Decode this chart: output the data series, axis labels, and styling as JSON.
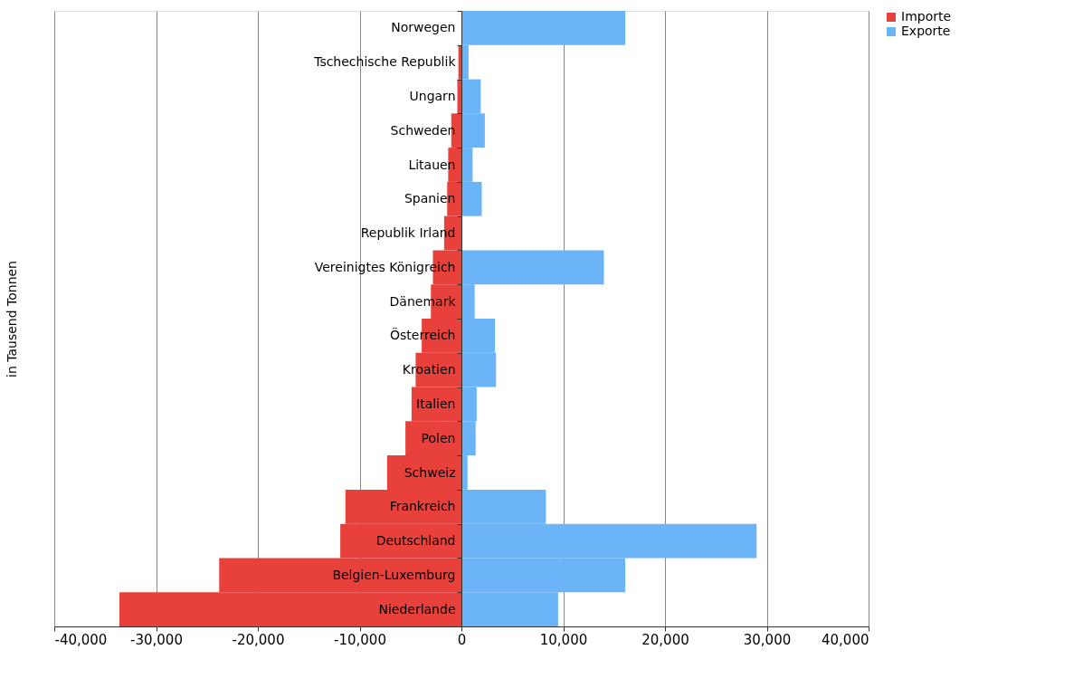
{
  "chart_data": {
    "type": "bar",
    "orientation": "horizontal",
    "ylabel": "in Tausend Tonnen",
    "categories": [
      "Norwegen",
      "Tschechische Republik",
      "Ungarn",
      "Schweden",
      "Litauen",
      "Spanien",
      "Republik Irland",
      "Vereinigtes Königreich",
      "Dänemark",
      "Österreich",
      "Kroatien",
      "Italien",
      "Polen",
      "Schweiz",
      "Frankreich",
      "Deutschland",
      "Belgien-Luxemburg",
      "Niederlande"
    ],
    "series": [
      {
        "name": "Importe",
        "color": "#e8413c",
        "values": [
          0,
          -300,
          -400,
          -1000,
          -1300,
          -1400,
          -1700,
          -2800,
          -3000,
          -3900,
          -4500,
          -4900,
          -5500,
          -7300,
          -11400,
          -11900,
          -23800,
          -33600
        ]
      },
      {
        "name": "Exporte",
        "color": "#6cb4f8",
        "values": [
          16100,
          700,
          1900,
          2300,
          1100,
          2000,
          null,
          14000,
          1300,
          3300,
          3400,
          1500,
          1400,
          600,
          8300,
          29000,
          16100,
          9500
        ]
      }
    ],
    "xlim": [
      -40000,
      40000
    ],
    "xticks": [
      {
        "value": -40000,
        "label": "-40,000"
      },
      {
        "value": -30000,
        "label": "-30,000"
      },
      {
        "value": -20000,
        "label": "-20,000"
      },
      {
        "value": -10000,
        "label": "-10,000"
      },
      {
        "value": 0,
        "label": "0"
      },
      {
        "value": 10000,
        "label": "10,000"
      },
      {
        "value": 20000,
        "label": "20,000"
      },
      {
        "value": 30000,
        "label": "30,000"
      },
      {
        "value": 40000,
        "label": "40,000"
      }
    ],
    "stacked": true,
    "grid": "x",
    "legend": "right"
  }
}
